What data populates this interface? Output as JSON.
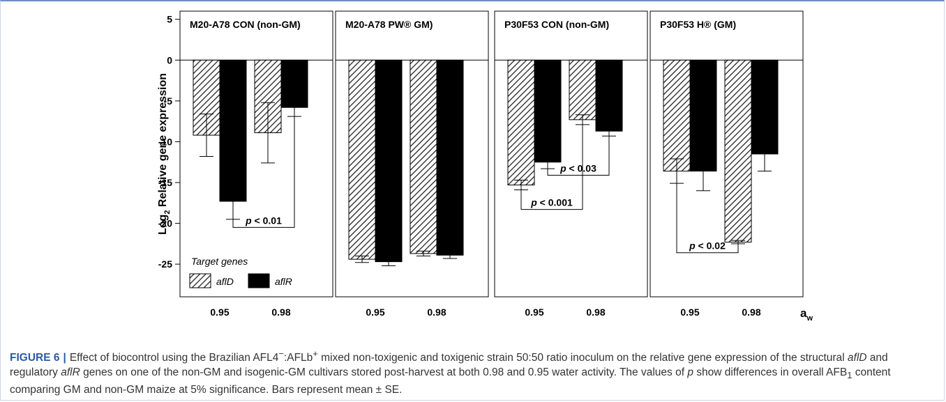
{
  "figure_label": "FIGURE 6",
  "caption_parts": {
    "p1": "Effect of biocontrol using the Brazilian AFL4",
    "sup1": "−",
    "p2": ":AFLb",
    "sup2": "+",
    "p3": " mixed non-toxigenic and toxigenic strain 50:50 ratio inoculum on the relative gene expression of the structural ",
    "gene1": "aflD",
    "p4": " and regulatory ",
    "gene2": "aflR",
    "p5": " genes on one of the non-GM and isogenic-GM cultivars stored post-harvest at both 0.98 and 0.95 water activity. The values of ",
    "pvar": "p",
    "p6": " show differences in overall AFB",
    "sub1": "1",
    "p7": " content comparing GM and non-GM maize at 5% significance. Bars represent mean ± SE."
  },
  "chart_data": {
    "type": "bar",
    "ylabel": "Log2 Relative gene expression",
    "ylabel_parts": {
      "main": "Log",
      "sub": "2",
      "rest": " Relative gene expression"
    },
    "xlabel": "aw",
    "xlabel_parts": {
      "main": "a",
      "sub": "w"
    },
    "ylim": [
      -29,
      6
    ],
    "yticks": [
      5,
      0,
      -5,
      -10,
      -15,
      -20,
      -25
    ],
    "grid": false,
    "legend": {
      "title": "Target genes",
      "placement": "bottom-left of first panel",
      "entries": [
        {
          "name": "aflD",
          "pattern": "hatched"
        },
        {
          "name": "aflR",
          "pattern": "solid"
        }
      ]
    },
    "panels": [
      {
        "title": "M20-A78 CON (non-GM)",
        "categories": [
          "0.95",
          "0.98"
        ],
        "series": [
          {
            "name": "aflD",
            "values": [
              -9.2,
              -8.9
            ],
            "errors": [
              2.6,
              3.7
            ]
          },
          {
            "name": "aflR",
            "values": [
              -17.3,
              -5.8
            ],
            "errors": [
              2.2,
              1.1
            ]
          }
        ],
        "annotations": [
          {
            "text": "p < 0.01",
            "from": [
              0,
              "aflR"
            ],
            "to": [
              1,
              "aflR"
            ],
            "y": -20.5
          }
        ]
      },
      {
        "title": "M20-A78 PW® GM)",
        "categories": [
          "0.95",
          "0.98"
        ],
        "series": [
          {
            "name": "aflD",
            "values": [
              -24.4,
              -23.7
            ],
            "errors": [
              0.4,
              0.3
            ]
          },
          {
            "name": "aflR",
            "values": [
              -24.7,
              -23.9
            ],
            "errors": [
              0.5,
              0.4
            ]
          }
        ],
        "annotations": []
      },
      {
        "title": "P30F53 CON (non-GM)",
        "categories": [
          "0.95",
          "0.98"
        ],
        "series": [
          {
            "name": "aflD",
            "values": [
              -15.3,
              -7.3
            ],
            "errors": [
              0.6,
              0.6
            ]
          },
          {
            "name": "aflR",
            "values": [
              -12.5,
              -8.7
            ],
            "errors": [
              0.8,
              0.6
            ]
          }
        ],
        "annotations": [
          {
            "text": "p < 0.03",
            "from": [
              0,
              "aflR"
            ],
            "to": [
              1,
              "aflR"
            ],
            "y": -14.1
          },
          {
            "text": "p < 0.001",
            "from": [
              0,
              "aflD"
            ],
            "to": [
              1,
              "aflD"
            ],
            "y": -18.3
          }
        ]
      },
      {
        "title": "P30F53 H® (GM)",
        "categories": [
          "0.95",
          "0.98"
        ],
        "series": [
          {
            "name": "aflD",
            "values": [
              -13.6,
              -22.3
            ],
            "errors": [
              1.5,
              0.2
            ]
          },
          {
            "name": "aflR",
            "values": [
              -13.6,
              -11.5
            ],
            "errors": [
              2.4,
              2.1
            ]
          }
        ],
        "annotations": [
          {
            "text": "p < 0.02",
            "from": [
              0,
              "aflD"
            ],
            "to": [
              1,
              "aflD"
            ],
            "y": -23.6
          }
        ]
      }
    ]
  }
}
